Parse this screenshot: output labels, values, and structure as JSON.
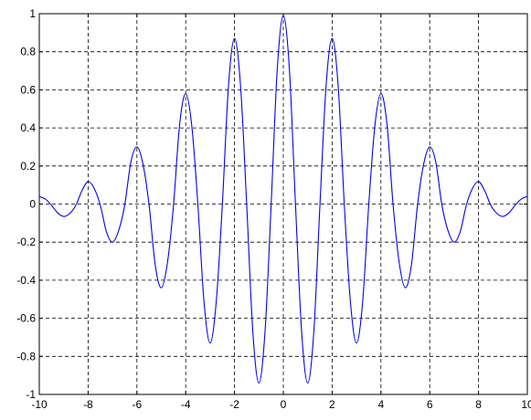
{
  "chart_data": {
    "type": "line",
    "title": "",
    "xlabel": "",
    "ylabel": "",
    "xlim": [
      -10,
      10
    ],
    "ylim": [
      -1,
      1
    ],
    "grid": true,
    "grid_style": "dashed",
    "x_ticks": [
      -10,
      -8,
      -6,
      -4,
      -2,
      0,
      2,
      4,
      6,
      8,
      10
    ],
    "x_tick_labels": [
      "-10",
      "-8",
      "-6",
      "-4",
      "-2",
      "0",
      "2",
      "4",
      "6",
      "8",
      "10"
    ],
    "y_ticks": [
      -1,
      -0.8,
      -0.6,
      -0.4,
      -0.2,
      0,
      0.2,
      0.4,
      0.6,
      0.8,
      1
    ],
    "y_tick_labels": [
      "-1",
      "-0.8",
      "-0.6",
      "-0.4",
      "-0.2",
      "0",
      "0.2",
      "0.4",
      "0.6",
      "0.8",
      "1"
    ],
    "series": [
      {
        "color": "#0000ff",
        "x": [
          -10,
          -9.75,
          -9.5,
          -9.25,
          -9,
          -8.75,
          -8.5,
          -8.25,
          -8,
          -7.75,
          -7.5,
          -7.25,
          -7,
          -6.75,
          -6.5,
          -6.25,
          -6,
          -5.75,
          -5.5,
          -5.25,
          -5,
          -4.75,
          -4.5,
          -4.25,
          -4,
          -3.75,
          -3.5,
          -3.25,
          -3,
          -2.75,
          -2.5,
          -2.25,
          -2,
          -1.75,
          -1.5,
          -1.25,
          -1,
          -0.75,
          -0.5,
          -0.25,
          0,
          0.25,
          0.5,
          0.75,
          1,
          1.25,
          1.5,
          1.75,
          2,
          2.25,
          2.5,
          2.75,
          3,
          3.25,
          3.5,
          3.75,
          4,
          4.25,
          4.5,
          4.75,
          5,
          5.25,
          5.5,
          5.75,
          6,
          6.25,
          6.5,
          6.75,
          7,
          7.25,
          7.5,
          7.75,
          8,
          8.25,
          8.5,
          8.75,
          9,
          9.25,
          9.5,
          9.75,
          10
        ],
        "y": [
          0.04,
          0.026,
          -0.006,
          -0.046,
          -0.065,
          -0.049,
          -0.006,
          0.071,
          0.118,
          0.082,
          -0.006,
          -0.145,
          -0.2,
          -0.14,
          -0.006,
          0.219,
          0.3,
          0.209,
          -0.006,
          -0.32,
          -0.44,
          -0.309,
          -0.006,
          0.417,
          0.58,
          0.409,
          -0.006,
          -0.515,
          -0.73,
          -0.515,
          -0.006,
          0.616,
          0.87,
          0.616,
          -0.006,
          -0.67,
          -0.94,
          -0.67,
          -0.006,
          0.705,
          0.99,
          0.705,
          -0.006,
          -0.67,
          -0.94,
          -0.67,
          -0.006,
          0.616,
          0.87,
          0.616,
          -0.006,
          -0.515,
          -0.73,
          -0.515,
          -0.006,
          0.409,
          0.58,
          0.417,
          -0.006,
          -0.309,
          -0.44,
          -0.32,
          -0.006,
          0.209,
          0.3,
          0.219,
          -0.006,
          -0.14,
          -0.2,
          -0.145,
          -0.006,
          0.082,
          0.118,
          0.071,
          -0.006,
          -0.049,
          -0.065,
          -0.046,
          -0.006,
          0.026,
          0.04
        ]
      }
    ]
  }
}
